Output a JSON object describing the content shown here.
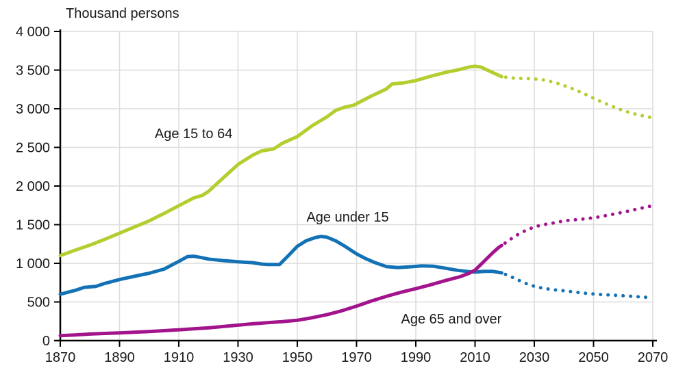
{
  "chart_data": {
    "type": "line",
    "title": "Thousand persons",
    "xlabel": "",
    "ylabel": "Thousand persons",
    "xlim": [
      1870,
      2070
    ],
    "ylim": [
      0,
      4000
    ],
    "grid": true,
    "legend_position": "inline-labels",
    "projection_start_year": 2019,
    "x_ticks": [
      1870,
      1890,
      1910,
      1930,
      1950,
      1970,
      1990,
      2010,
      2030,
      2050,
      2070
    ],
    "y_ticks": [
      {
        "value": 0,
        "label": "0"
      },
      {
        "value": 500,
        "label": "500"
      },
      {
        "value": 1000,
        "label": "1 000"
      },
      {
        "value": 1500,
        "label": "1 500"
      },
      {
        "value": 2000,
        "label": "2 000"
      },
      {
        "value": 2500,
        "label": "2 500"
      },
      {
        "value": 3000,
        "label": "3 000"
      },
      {
        "value": 3500,
        "label": "3 500"
      },
      {
        "value": 4000,
        "label": "4 000"
      }
    ],
    "colors": {
      "axis": "#000000",
      "grid": "#dcdcdc",
      "text": "#1a1a1a",
      "age_15_to_64": "#b2ce2f",
      "age_under_15": "#1372b5",
      "age_65_and_over": "#a2148c"
    },
    "series": [
      {
        "name": "Age 15 to 64",
        "slug": "age-15-to-64",
        "color": "#b2ce2f",
        "label": {
          "text": "Age 15 to 64",
          "x": 1915,
          "y": 2680
        },
        "observed": [
          [
            1870,
            1100
          ],
          [
            1875,
            1170
          ],
          [
            1880,
            1235
          ],
          [
            1885,
            1310
          ],
          [
            1890,
            1390
          ],
          [
            1895,
            1470
          ],
          [
            1900,
            1550
          ],
          [
            1905,
            1645
          ],
          [
            1910,
            1745
          ],
          [
            1915,
            1845
          ],
          [
            1918,
            1880
          ],
          [
            1920,
            1930
          ],
          [
            1925,
            2105
          ],
          [
            1930,
            2280
          ],
          [
            1935,
            2400
          ],
          [
            1938,
            2455
          ],
          [
            1942,
            2480
          ],
          [
            1945,
            2555
          ],
          [
            1950,
            2640
          ],
          [
            1955,
            2780
          ],
          [
            1960,
            2895
          ],
          [
            1963,
            2980
          ],
          [
            1966,
            3020
          ],
          [
            1969,
            3045
          ],
          [
            1975,
            3165
          ],
          [
            1980,
            3255
          ],
          [
            1982,
            3320
          ],
          [
            1986,
            3335
          ],
          [
            1990,
            3365
          ],
          [
            1995,
            3420
          ],
          [
            2000,
            3470
          ],
          [
            2005,
            3510
          ],
          [
            2008,
            3540
          ],
          [
            2010,
            3550
          ],
          [
            2012,
            3540
          ],
          [
            2015,
            3485
          ],
          [
            2017,
            3450
          ],
          [
            2019,
            3415
          ]
        ],
        "projected": [
          [
            2019,
            3415
          ],
          [
            2022,
            3400
          ],
          [
            2025,
            3392
          ],
          [
            2028,
            3390
          ],
          [
            2031,
            3383
          ],
          [
            2034,
            3368
          ],
          [
            2037,
            3340
          ],
          [
            2040,
            3300
          ],
          [
            2043,
            3258
          ],
          [
            2046,
            3210
          ],
          [
            2049,
            3155
          ],
          [
            2052,
            3102
          ],
          [
            2055,
            3052
          ],
          [
            2058,
            3005
          ],
          [
            2061,
            2965
          ],
          [
            2064,
            2932
          ],
          [
            2067,
            2905
          ],
          [
            2070,
            2882
          ]
        ]
      },
      {
        "name": "Age under 15",
        "slug": "age-under-15",
        "color": "#1372b5",
        "label": {
          "text": "Age under 15",
          "x": 1967,
          "y": 1600
        },
        "observed": [
          [
            1870,
            600
          ],
          [
            1875,
            650
          ],
          [
            1878,
            688
          ],
          [
            1882,
            702
          ],
          [
            1885,
            740
          ],
          [
            1890,
            790
          ],
          [
            1895,
            832
          ],
          [
            1900,
            872
          ],
          [
            1905,
            925
          ],
          [
            1910,
            1025
          ],
          [
            1913,
            1088
          ],
          [
            1915,
            1092
          ],
          [
            1918,
            1072
          ],
          [
            1920,
            1055
          ],
          [
            1925,
            1035
          ],
          [
            1930,
            1020
          ],
          [
            1935,
            1008
          ],
          [
            1938,
            990
          ],
          [
            1940,
            985
          ],
          [
            1944,
            985
          ],
          [
            1947,
            1100
          ],
          [
            1950,
            1220
          ],
          [
            1953,
            1292
          ],
          [
            1956,
            1332
          ],
          [
            1958,
            1348
          ],
          [
            1960,
            1338
          ],
          [
            1963,
            1290
          ],
          [
            1966,
            1222
          ],
          [
            1970,
            1122
          ],
          [
            1973,
            1062
          ],
          [
            1976,
            1012
          ],
          [
            1980,
            958
          ],
          [
            1984,
            945
          ],
          [
            1988,
            955
          ],
          [
            1992,
            966
          ],
          [
            1996,
            962
          ],
          [
            2000,
            936
          ],
          [
            2004,
            910
          ],
          [
            2008,
            892
          ],
          [
            2010,
            886
          ],
          [
            2013,
            896
          ],
          [
            2016,
            896
          ],
          [
            2019,
            876
          ]
        ],
        "projected": [
          [
            2019,
            876
          ],
          [
            2022,
            830
          ],
          [
            2025,
            776
          ],
          [
            2028,
            726
          ],
          [
            2031,
            692
          ],
          [
            2034,
            671
          ],
          [
            2037,
            656
          ],
          [
            2040,
            645
          ],
          [
            2043,
            631
          ],
          [
            2046,
            617
          ],
          [
            2049,
            606
          ],
          [
            2052,
            597
          ],
          [
            2055,
            591
          ],
          [
            2058,
            585
          ],
          [
            2061,
            578
          ],
          [
            2064,
            570
          ],
          [
            2067,
            562
          ],
          [
            2070,
            556
          ]
        ]
      },
      {
        "name": "Age 65 and over",
        "slug": "age-65-and-over",
        "color": "#a2148c",
        "label": {
          "text": "Age 65 and over",
          "x": 2002,
          "y": 283
        },
        "observed": [
          [
            1870,
            65
          ],
          [
            1875,
            73
          ],
          [
            1880,
            85
          ],
          [
            1885,
            93
          ],
          [
            1890,
            100
          ],
          [
            1895,
            108
          ],
          [
            1900,
            118
          ],
          [
            1905,
            128
          ],
          [
            1910,
            140
          ],
          [
            1915,
            152
          ],
          [
            1920,
            165
          ],
          [
            1925,
            182
          ],
          [
            1930,
            200
          ],
          [
            1935,
            218
          ],
          [
            1940,
            232
          ],
          [
            1945,
            245
          ],
          [
            1950,
            263
          ],
          [
            1955,
            296
          ],
          [
            1960,
            335
          ],
          [
            1965,
            386
          ],
          [
            1970,
            446
          ],
          [
            1975,
            512
          ],
          [
            1980,
            572
          ],
          [
            1985,
            626
          ],
          [
            1990,
            672
          ],
          [
            1995,
            722
          ],
          [
            2000,
            777
          ],
          [
            2005,
            827
          ],
          [
            2008,
            872
          ],
          [
            2010,
            912
          ],
          [
            2012,
            986
          ],
          [
            2014,
            1062
          ],
          [
            2016,
            1138
          ],
          [
            2018,
            1206
          ],
          [
            2019,
            1231
          ]
        ],
        "projected": [
          [
            2019,
            1231
          ],
          [
            2022,
            1312
          ],
          [
            2025,
            1386
          ],
          [
            2028,
            1442
          ],
          [
            2031,
            1481
          ],
          [
            2034,
            1506
          ],
          [
            2037,
            1526
          ],
          [
            2040,
            1550
          ],
          [
            2043,
            1561
          ],
          [
            2046,
            1571
          ],
          [
            2049,
            1585
          ],
          [
            2052,
            1601
          ],
          [
            2055,
            1624
          ],
          [
            2058,
            1646
          ],
          [
            2061,
            1670
          ],
          [
            2064,
            1696
          ],
          [
            2067,
            1721
          ],
          [
            2070,
            1746
          ]
        ]
      }
    ]
  }
}
